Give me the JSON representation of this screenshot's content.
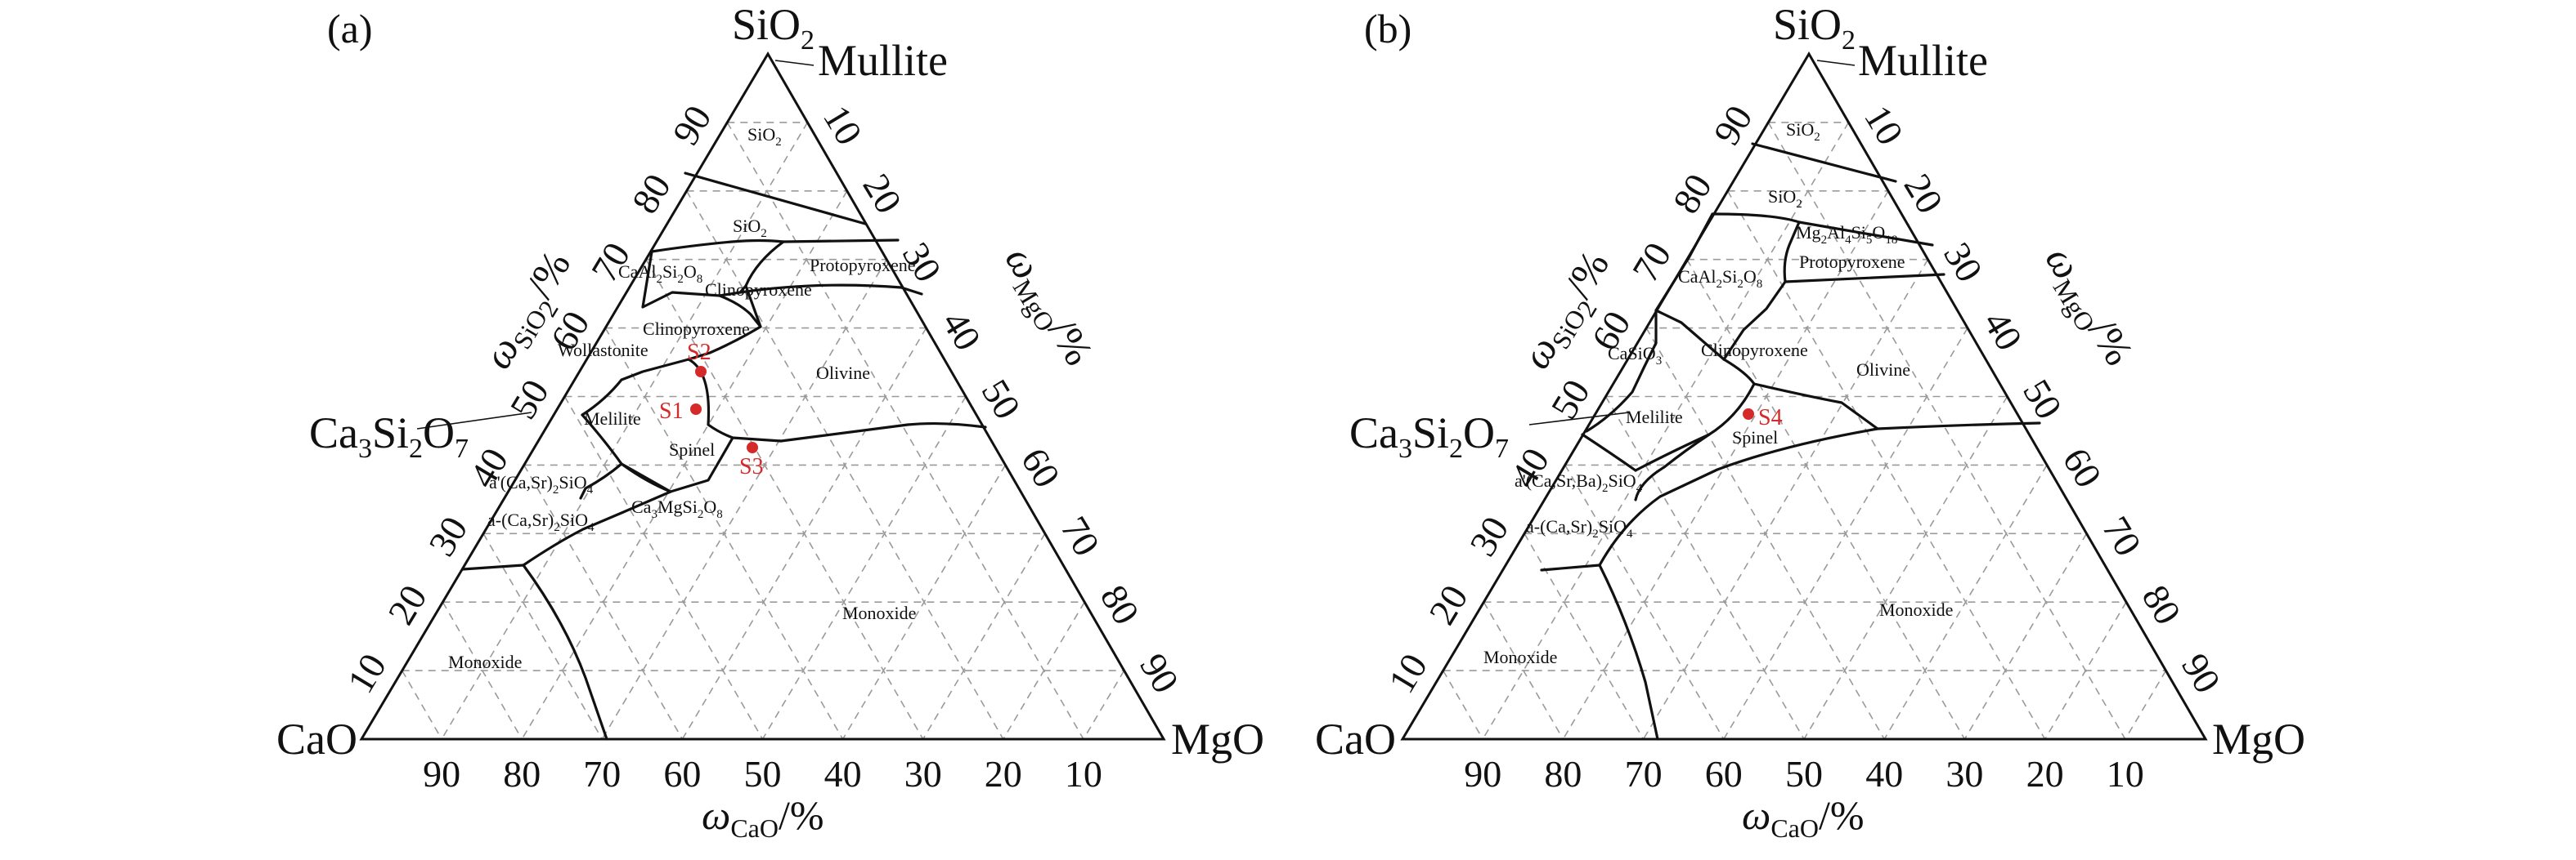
{
  "colors": {
    "ink": "#111111",
    "grid": "#9a9a9a",
    "sample": "#d42a2a"
  },
  "axis_ticks": {
    "left": [
      "10",
      "20",
      "30",
      "40",
      "50",
      "60",
      "70",
      "80",
      "90"
    ],
    "right": [
      "10",
      "20",
      "30",
      "40",
      "50",
      "60",
      "70",
      "80",
      "90"
    ],
    "bottom": [
      "90",
      "80",
      "70",
      "60",
      "50",
      "40",
      "30",
      "20",
      "10"
    ]
  },
  "vertices": {
    "top": "SiO",
    "top_sub": "2",
    "left": "CaO",
    "right": "MgO",
    "mullite": "Mullite"
  },
  "axis_labels": {
    "sio2": {
      "main": "ω",
      "sub": "SiO2",
      "unit": "/%"
    },
    "mgo": {
      "main": "ω",
      "sub": "MgO",
      "unit": "/%"
    },
    "cao": {
      "main": "ω",
      "sub": "CaO",
      "unit": "/%"
    }
  },
  "panels": [
    {
      "label": "(a)",
      "ca3si2o7": "Ca3Si2O7",
      "fields": {
        "sio2_top": "SiO2",
        "sio2_mid": "SiO2",
        "protopyroxene": "Protopyroxene",
        "anorthite": "CaAl2Si2O8",
        "clinopyroxene_1": "Clinopyroxene",
        "clinopyroxene_2": "Clinopyroxene",
        "wollastonite": "Wollastonite",
        "olivine": "Olivine",
        "melilite": "Melilite",
        "spinel": "Spinel",
        "a_prime": "a'(Ca,Sr)2SiO4",
        "a_phase": "a-(Ca,Sr)2SiO4",
        "merwinite": "Ca3MgSi2O8",
        "monoxide_right": "Monoxide",
        "monoxide_left": "Monoxide"
      },
      "samples": [
        "S1",
        "S2",
        "S3"
      ]
    },
    {
      "label": "(b)",
      "ca3si2o7": "Ca3Si2O7",
      "fields": {
        "sio2_top": "SiO2",
        "sio2_mid": "SiO2",
        "spinel_ms": "Mg2Al4Si5O18",
        "protopyroxene": "Protopyroxene",
        "anorthite": "CaAl2Si2O8",
        "casio3": "CaSiO3",
        "clinopyroxene": "Clinopyroxene",
        "olivine": "Olivine",
        "melilite": "Melilite",
        "spinel": "Spinel",
        "a_prime": "a'(Ca,Sr,Ba)2SiO4",
        "a_phase": "a-(Ca,Sr)2SiO4",
        "monoxide_right": "Monoxide",
        "monoxide_left": "Monoxide"
      },
      "samples": [
        "S4"
      ]
    }
  ]
}
